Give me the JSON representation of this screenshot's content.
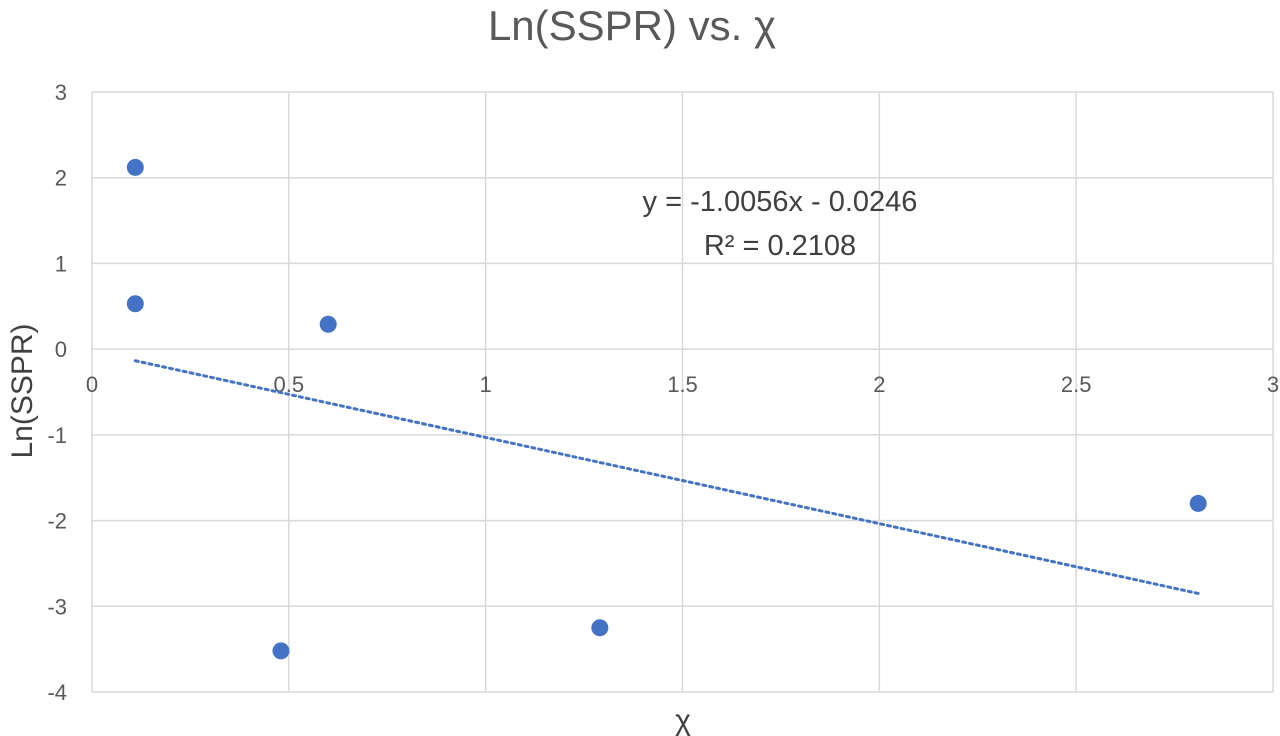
{
  "chart_data": {
    "type": "scatter",
    "title": "Ln(SSPR) vs. χ",
    "xlabel": "χ",
    "ylabel": "Ln(SSPR)",
    "xlim": [
      0,
      3
    ],
    "ylim": [
      -4,
      3
    ],
    "x_ticks": [
      "0",
      "0.5",
      "1",
      "1.5",
      "2",
      "2.5",
      "3"
    ],
    "y_ticks": [
      "3",
      "2",
      "1",
      "0",
      "-1",
      "-2",
      "-3",
      "-4"
    ],
    "grid": true,
    "series": [
      {
        "color": "#4472c4",
        "points": [
          {
            "x": 0.11,
            "y": 2.12
          },
          {
            "x": 0.11,
            "y": 0.53
          },
          {
            "x": 0.6,
            "y": 0.29
          },
          {
            "x": 0.48,
            "y": -3.52
          },
          {
            "x": 1.29,
            "y": -3.25
          },
          {
            "x": 2.81,
            "y": -1.8
          }
        ]
      }
    ],
    "trendline": {
      "type": "linear",
      "style": "dotted",
      "color": "#4472c4",
      "slope": -1.0056,
      "intercept": -0.0246,
      "x_range": [
        0.11,
        2.81
      ],
      "equation_text": "y = -1.0056x - 0.0246",
      "r2_text": "R² = 0.2108"
    }
  }
}
